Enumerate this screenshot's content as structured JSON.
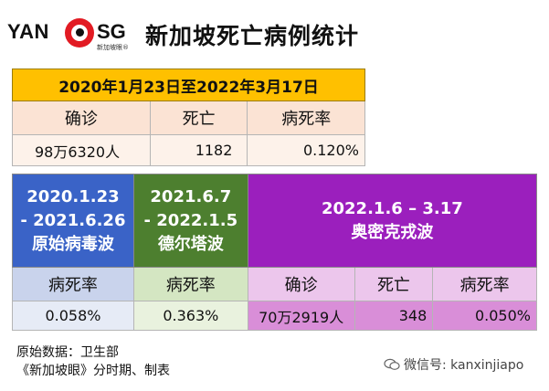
{
  "header": {
    "logo": {
      "part1": "YAN",
      "part2": "SG",
      "subtitle": "新加坡眼®"
    },
    "title": "新加坡死亡病例统计"
  },
  "overall": {
    "period": "2020年1月23日至2022年3月17日",
    "labels": [
      "确诊",
      "死亡",
      "病死率"
    ],
    "values": [
      "98万6320人",
      "1182",
      "0.120%"
    ]
  },
  "waves": {
    "original": {
      "period": "2020.1.23",
      "period_end": "- 2021.6.26",
      "name": "原始病毒波",
      "label": "病死率",
      "value": "0.058%"
    },
    "delta": {
      "period": "2021.6.7",
      "period_end": "- 2022.1.5",
      "name": "德尔塔波",
      "label": "病死率",
      "value": "0.363%"
    },
    "omicron": {
      "period": "2022.1.6 – 3.17",
      "name": "奥密克戎波",
      "labels": [
        "确诊",
        "死亡",
        "病死率"
      ],
      "values": [
        "70万2919人",
        "348",
        "0.050%"
      ]
    }
  },
  "footer": {
    "source": "原始数据：卫生部",
    "credit": "《新加坡眼》分时期、制表"
  },
  "watermark": {
    "text": "微信号: kanxinjiapo",
    "icon": "wechat-icon"
  },
  "colors": {
    "gold": "#ffc000",
    "blue": "#3a63c7",
    "green": "#4d7f2f",
    "purple": "#9b1fbd",
    "brand_red": "#e21b23"
  }
}
